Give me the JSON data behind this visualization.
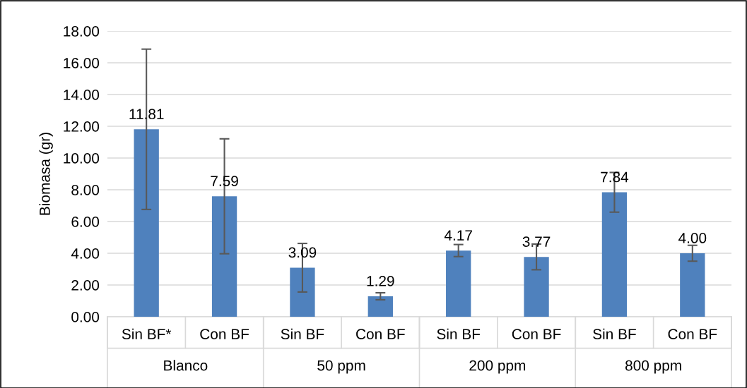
{
  "chart_data": {
    "type": "bar",
    "ylabel": "Biomasa (gr)",
    "categories": [
      "Sin BF*",
      "Con BF",
      "Sin BF",
      "Con BF",
      "Sin BF",
      "Con BF",
      "Sin BF",
      "Con BF"
    ],
    "values": [
      11.81,
      7.59,
      3.09,
      1.29,
      4.17,
      3.77,
      7.84,
      4.0
    ],
    "value_labels": [
      "11.81",
      "7.59",
      "3.09",
      "1.29",
      "4.17",
      "3.77",
      "7.84",
      "4.00"
    ],
    "errors": [
      5.05,
      3.62,
      1.53,
      0.22,
      0.38,
      0.81,
      1.25,
      0.5
    ],
    "color": "#4f81bd",
    "annotations": [
      "Blanco",
      "50 ppm",
      "200 ppm",
      "800 ppm"
    ],
    "ylim": [
      0,
      18
    ],
    "yticks": [
      {
        "value": 0,
        "label": "0.00"
      },
      {
        "value": 2,
        "label": "2.00"
      },
      {
        "value": 4,
        "label": "4.00"
      },
      {
        "value": 6,
        "label": "6.00"
      },
      {
        "value": 8,
        "label": "8.00"
      },
      {
        "value": 10,
        "label": "10.00"
      },
      {
        "value": 12,
        "label": "12.00"
      },
      {
        "value": 14,
        "label": "14.00"
      },
      {
        "value": 16,
        "label": "16.00"
      },
      {
        "value": 18,
        "label": "18.00"
      }
    ],
    "grid": "y",
    "legend": false
  }
}
